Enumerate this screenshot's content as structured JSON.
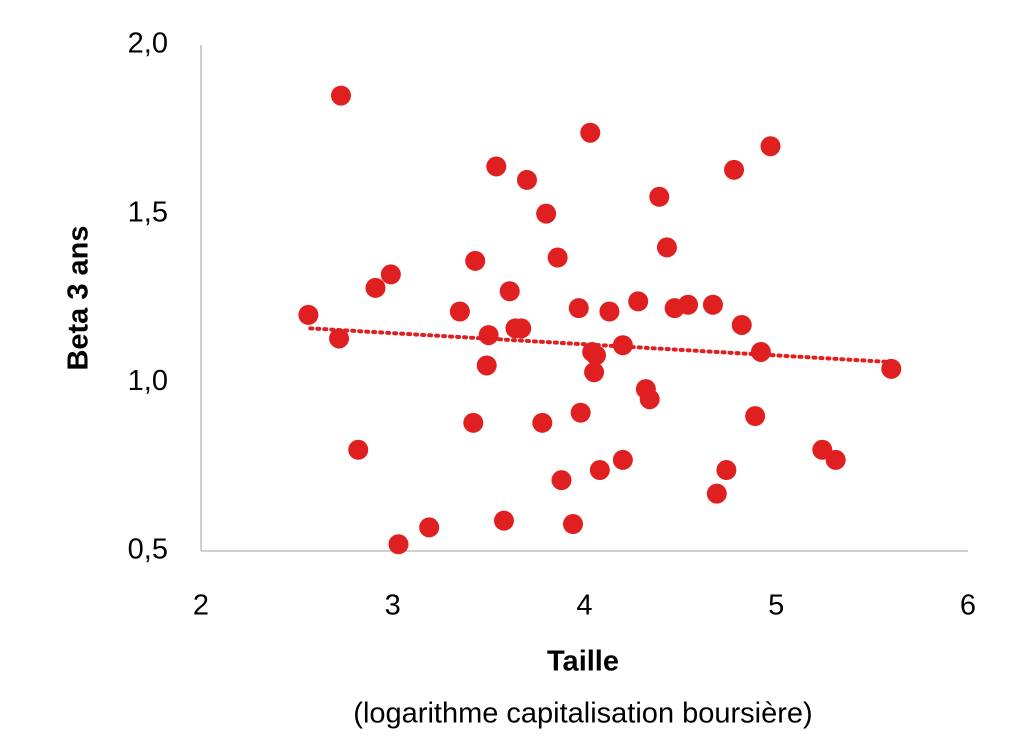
{
  "chart_data": {
    "type": "scatter",
    "x_label": "Taille",
    "x_sublabel": "(logarithme capitalisation boursière)",
    "y_label": "Beta 3 ans",
    "color": "#e02020",
    "xlim": [
      2,
      6
    ],
    "xticks": [
      2,
      3,
      4,
      5,
      6
    ],
    "ylim": [
      0.5,
      2.0
    ],
    "yticks": [
      {
        "value": 0.5,
        "label": "0,5"
      },
      {
        "value": 1.0,
        "label": "1,0"
      },
      {
        "value": 1.5,
        "label": "1,5"
      },
      {
        "value": 2.0,
        "label": "2,0"
      }
    ],
    "x": [
      2.56,
      2.73,
      2.72,
      2.82,
      2.91,
      2.99,
      3.03,
      3.19,
      3.35,
      3.42,
      3.43,
      3.49,
      3.5,
      3.54,
      3.58,
      3.61,
      3.64,
      3.67,
      3.7,
      3.78,
      3.8,
      3.86,
      3.88,
      3.94,
      3.97,
      3.98,
      4.03,
      4.04,
      4.06,
      4.05,
      4.08,
      4.13,
      4.2,
      4.2,
      4.28,
      4.32,
      4.34,
      4.39,
      4.43,
      4.47,
      4.54,
      4.67,
      4.69,
      4.74,
      4.78,
      4.82,
      4.89,
      4.92,
      4.97,
      5.24,
      5.31,
      5.6
    ],
    "values": [
      1.2,
      1.85,
      1.13,
      0.8,
      1.28,
      1.32,
      0.52,
      0.57,
      1.21,
      0.88,
      1.36,
      1.05,
      1.14,
      1.64,
      0.59,
      1.27,
      1.16,
      1.16,
      1.6,
      0.88,
      1.5,
      1.37,
      0.71,
      0.58,
      1.22,
      0.91,
      1.74,
      1.09,
      1.08,
      1.03,
      0.74,
      1.21,
      0.77,
      1.11,
      1.24,
      0.98,
      0.95,
      1.55,
      1.4,
      1.22,
      1.23,
      1.23,
      0.67,
      0.74,
      1.63,
      1.17,
      0.9,
      1.09,
      1.7,
      0.8,
      0.77,
      1.04
    ],
    "trendline": {
      "x": [
        2.57,
        5.6
      ],
      "values": [
        1.16,
        1.06
      ]
    }
  }
}
